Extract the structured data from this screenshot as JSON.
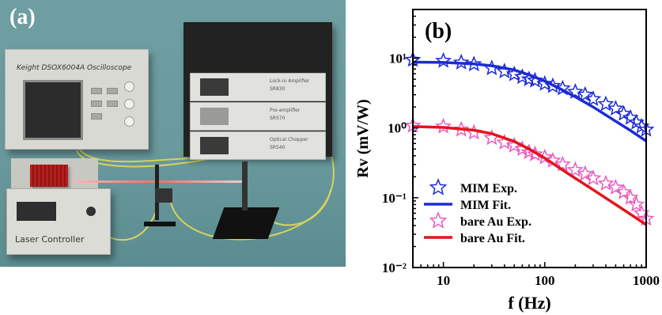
{
  "panel_a": {
    "letter": "(a)",
    "oscilloscope_label": "Keight DSOX6004A Oscilloscope",
    "lockin_label": "Lock-in Amplifier",
    "lockin_model": "SR830",
    "preamp_label": "Pre-amplifier",
    "preamp_model": "SR570",
    "chopper_label": "Optical Chopper",
    "chopper_model": "SR540",
    "laser_label": "Laser Controller"
  },
  "panel_b": {
    "letter": "(b)"
  },
  "colors": {
    "mim": "#1c2bd6",
    "bare_au_fit": "#e3141c",
    "bare_au_exp": "#e85bbf"
  },
  "chart_data": {
    "type": "scatter",
    "xlabel": "f (Hz)",
    "ylabel": "Rv (mV/W)",
    "xscale": "log",
    "yscale": "log",
    "xlim": [
      5,
      1000
    ],
    "ylim": [
      0.01,
      50
    ],
    "x_ticks": [
      "10",
      "100",
      "1000"
    ],
    "y_ticks": [
      "10⁻²",
      "10⁻¹",
      "10⁰",
      "10¹"
    ],
    "legend_position": "lower-left",
    "series": [
      {
        "name": "MIM Exp.",
        "marker": "open-star",
        "color": "#1c2bd6",
        "x": [
          5,
          10,
          15,
          20,
          30,
          40,
          50,
          60,
          70,
          80,
          100,
          120,
          150,
          200,
          250,
          300,
          400,
          500,
          600,
          700,
          800,
          900,
          1000
        ],
        "y": [
          9.5,
          9.2,
          8.7,
          8.2,
          7.2,
          6.5,
          5.9,
          5.4,
          5.0,
          4.8,
          4.3,
          4.0,
          3.7,
          3.3,
          3.0,
          2.6,
          2.2,
          1.9,
          1.6,
          1.4,
          1.2,
          1.05,
          0.95
        ]
      },
      {
        "name": "MIM Fit.",
        "style": "line",
        "color": "#1c2bd6",
        "x": [
          5,
          10,
          20,
          30,
          50,
          70,
          100,
          150,
          200,
          300,
          500,
          700,
          1000
        ],
        "y": [
          8.8,
          8.7,
          8.3,
          7.8,
          6.8,
          5.8,
          4.7,
          3.5,
          2.8,
          2.0,
          1.25,
          0.92,
          0.65
        ]
      },
      {
        "name": "bare Au Exp.",
        "marker": "open-star",
        "color": "#e85bbf",
        "x": [
          5,
          10,
          15,
          20,
          30,
          40,
          50,
          60,
          70,
          80,
          100,
          120,
          150,
          200,
          250,
          300,
          400,
          500,
          600,
          700,
          800,
          900,
          1000
        ],
        "y": [
          1.08,
          1.05,
          0.95,
          0.86,
          0.72,
          0.62,
          0.56,
          0.5,
          0.45,
          0.42,
          0.38,
          0.34,
          0.3,
          0.25,
          0.22,
          0.19,
          0.16,
          0.14,
          0.12,
          0.1,
          0.08,
          0.06,
          0.05
        ]
      },
      {
        "name": "bare Au Fit.",
        "style": "line",
        "color": "#e3141c",
        "x": [
          5,
          10,
          20,
          30,
          50,
          70,
          100,
          150,
          200,
          300,
          500,
          700,
          1000
        ],
        "y": [
          1.05,
          1.02,
          0.93,
          0.83,
          0.64,
          0.5,
          0.37,
          0.25,
          0.19,
          0.13,
          0.08,
          0.058,
          0.041
        ]
      }
    ]
  }
}
